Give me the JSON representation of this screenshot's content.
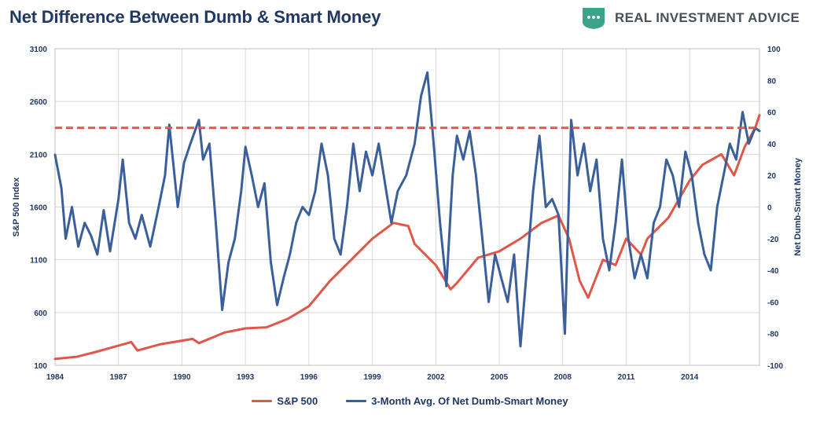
{
  "header": {
    "title": "Net Difference Between Dumb & Smart Money",
    "brand": "REAL INVESTMENT ADVICE"
  },
  "colors": {
    "title": "#1f3864",
    "sp500": "#e0574a",
    "money": "#3a5f9b",
    "reference": "#e0574a",
    "grid": "#d9d9d9",
    "brand_icon": "#3aa38a"
  },
  "chart_data": {
    "type": "line",
    "title": "Net Difference Between Dumb & Smart Money",
    "x_label": "",
    "y_left_label": "S&P 500 Index",
    "y_right_label": "Net Dumb-Smart Money",
    "x_range": [
      1984,
      2017.3
    ],
    "y_left_range": [
      100,
      3100
    ],
    "y_right_range": [
      -100,
      100
    ],
    "x_ticks": [
      "1984",
      "1987",
      "1990",
      "1993",
      "1996",
      "1999",
      "2002",
      "2005",
      "2008",
      "2011",
      "2014"
    ],
    "y_left_ticks": [
      "100",
      "600",
      "1100",
      "1600",
      "2100",
      "2600",
      "3100"
    ],
    "y_right_ticks": [
      "-100",
      "-80",
      "-60",
      "-40",
      "-20",
      "0",
      "20",
      "40",
      "60",
      "80",
      "100"
    ],
    "reference_line": {
      "axis": "right",
      "value": 50,
      "style": "dashed"
    },
    "series": [
      {
        "name": "S&P 500",
        "axis": "left",
        "points": [
          [
            1984,
            160
          ],
          [
            1985,
            180
          ],
          [
            1986,
            230
          ],
          [
            1987.6,
            320
          ],
          [
            1987.9,
            240
          ],
          [
            1989,
            300
          ],
          [
            1990.5,
            350
          ],
          [
            1990.8,
            310
          ],
          [
            1992,
            410
          ],
          [
            1993,
            450
          ],
          [
            1994,
            460
          ],
          [
            1995,
            540
          ],
          [
            1996,
            660
          ],
          [
            1997,
            900
          ],
          [
            1998,
            1100
          ],
          [
            1999,
            1300
          ],
          [
            2000,
            1450
          ],
          [
            2000.7,
            1420
          ],
          [
            2001,
            1250
          ],
          [
            2002,
            1050
          ],
          [
            2002.7,
            820
          ],
          [
            2003,
            880
          ],
          [
            2004,
            1120
          ],
          [
            2005,
            1180
          ],
          [
            2006,
            1300
          ],
          [
            2007,
            1450
          ],
          [
            2007.8,
            1520
          ],
          [
            2008.3,
            1300
          ],
          [
            2008.8,
            900
          ],
          [
            2009.2,
            740
          ],
          [
            2009.9,
            1100
          ],
          [
            2010.5,
            1050
          ],
          [
            2011,
            1300
          ],
          [
            2011.7,
            1150
          ],
          [
            2012,
            1300
          ],
          [
            2013,
            1500
          ],
          [
            2014,
            1850
          ],
          [
            2014.6,
            2000
          ],
          [
            2015.5,
            2100
          ],
          [
            2016.1,
            1900
          ],
          [
            2016.6,
            2170
          ],
          [
            2017.1,
            2350
          ],
          [
            2017.3,
            2470
          ]
        ]
      },
      {
        "name": "3-Month Avg. Of Net Dumb-Smart Money",
        "axis": "right",
        "points": [
          [
            1984,
            33
          ],
          [
            1984.3,
            12
          ],
          [
            1984.5,
            -20
          ],
          [
            1984.8,
            0
          ],
          [
            1985.1,
            -25
          ],
          [
            1985.4,
            -10
          ],
          [
            1985.7,
            -18
          ],
          [
            1986,
            -30
          ],
          [
            1986.3,
            -2
          ],
          [
            1986.6,
            -28
          ],
          [
            1987,
            5
          ],
          [
            1987.2,
            30
          ],
          [
            1987.5,
            -10
          ],
          [
            1987.8,
            -20
          ],
          [
            1988.1,
            -5
          ],
          [
            1988.5,
            -25
          ],
          [
            1988.9,
            0
          ],
          [
            1989.2,
            20
          ],
          [
            1989.4,
            52
          ],
          [
            1989.8,
            0
          ],
          [
            1990.1,
            28
          ],
          [
            1990.4,
            40
          ],
          [
            1990.8,
            55
          ],
          [
            1991,
            30
          ],
          [
            1991.3,
            40
          ],
          [
            1991.6,
            -10
          ],
          [
            1991.9,
            -65
          ],
          [
            1992.2,
            -35
          ],
          [
            1992.5,
            -20
          ],
          [
            1992.8,
            10
          ],
          [
            1993,
            38
          ],
          [
            1993.3,
            20
          ],
          [
            1993.6,
            0
          ],
          [
            1993.9,
            15
          ],
          [
            1994.2,
            -35
          ],
          [
            1994.5,
            -62
          ],
          [
            1994.8,
            -45
          ],
          [
            1995.1,
            -30
          ],
          [
            1995.4,
            -10
          ],
          [
            1995.7,
            0
          ],
          [
            1996,
            -5
          ],
          [
            1996.3,
            10
          ],
          [
            1996.6,
            40
          ],
          [
            1996.9,
            20
          ],
          [
            1997.2,
            -20
          ],
          [
            1997.5,
            -30
          ],
          [
            1997.8,
            0
          ],
          [
            1998.1,
            40
          ],
          [
            1998.4,
            10
          ],
          [
            1998.7,
            35
          ],
          [
            1999,
            20
          ],
          [
            1999.3,
            40
          ],
          [
            1999.6,
            15
          ],
          [
            1999.9,
            -10
          ],
          [
            2000.2,
            10
          ],
          [
            2000.6,
            20
          ],
          [
            2001,
            40
          ],
          [
            2001.3,
            70
          ],
          [
            2001.6,
            85
          ],
          [
            2001.9,
            40
          ],
          [
            2002.2,
            -10
          ],
          [
            2002.5,
            -50
          ],
          [
            2002.8,
            20
          ],
          [
            2003,
            45
          ],
          [
            2003.3,
            30
          ],
          [
            2003.6,
            48
          ],
          [
            2003.9,
            20
          ],
          [
            2004.2,
            -20
          ],
          [
            2004.5,
            -60
          ],
          [
            2004.8,
            -30
          ],
          [
            2005.1,
            -45
          ],
          [
            2005.4,
            -60
          ],
          [
            2005.7,
            -30
          ],
          [
            2006,
            -88
          ],
          [
            2006.3,
            -40
          ],
          [
            2006.6,
            10
          ],
          [
            2006.9,
            45
          ],
          [
            2007.2,
            0
          ],
          [
            2007.5,
            5
          ],
          [
            2007.8,
            -5
          ],
          [
            2008.1,
            -80
          ],
          [
            2008.4,
            55
          ],
          [
            2008.7,
            20
          ],
          [
            2009,
            40
          ],
          [
            2009.3,
            10
          ],
          [
            2009.6,
            30
          ],
          [
            2009.9,
            -20
          ],
          [
            2010.2,
            -40
          ],
          [
            2010.5,
            -10
          ],
          [
            2010.8,
            30
          ],
          [
            2011.1,
            -20
          ],
          [
            2011.4,
            -45
          ],
          [
            2011.7,
            -30
          ],
          [
            2012,
            -45
          ],
          [
            2012.3,
            -10
          ],
          [
            2012.6,
            0
          ],
          [
            2012.9,
            30
          ],
          [
            2013.2,
            20
          ],
          [
            2013.5,
            0
          ],
          [
            2013.8,
            35
          ],
          [
            2014.1,
            20
          ],
          [
            2014.4,
            -10
          ],
          [
            2014.7,
            -30
          ],
          [
            2015,
            -40
          ],
          [
            2015.3,
            0
          ],
          [
            2015.6,
            20
          ],
          [
            2015.9,
            40
          ],
          [
            2016.2,
            30
          ],
          [
            2016.5,
            60
          ],
          [
            2016.8,
            40
          ],
          [
            2017.1,
            50
          ],
          [
            2017.3,
            48
          ]
        ]
      }
    ]
  },
  "legend": {
    "items": [
      {
        "label": "S&P 500",
        "color": "#e0574a"
      },
      {
        "label": "3-Month Avg. Of Net Dumb-Smart Money",
        "color": "#3a5f9b"
      }
    ]
  }
}
